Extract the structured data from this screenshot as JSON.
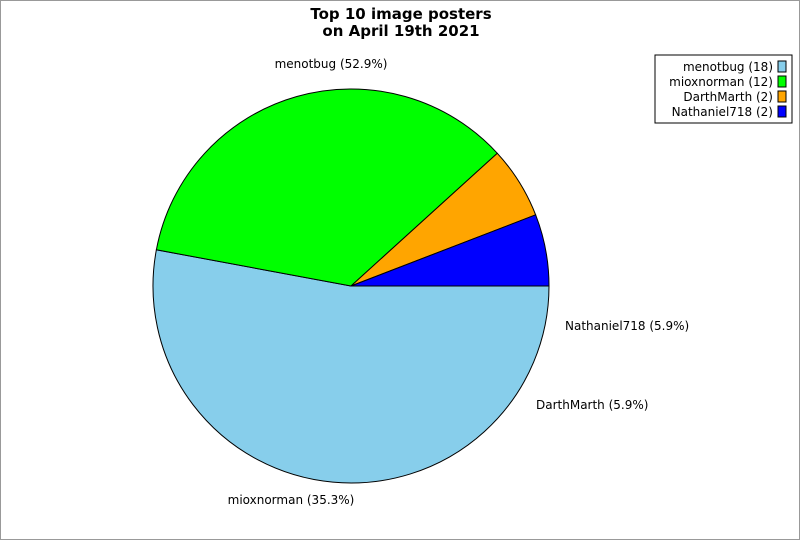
{
  "chart_data": {
    "type": "pie",
    "title": [
      "Top 10 image posters",
      "on April 19th 2021"
    ],
    "slices": [
      {
        "name": "menotbug",
        "value": 18,
        "percent": "52.9%",
        "color": "#87ceeb",
        "legend": "menotbug (18)",
        "label": "menotbug (52.9%)"
      },
      {
        "name": "mioxnorman",
        "value": 12,
        "percent": "35.3%",
        "color": "#00ff00",
        "legend": "mioxnorman (12)",
        "label": "mioxnorman (35.3%)"
      },
      {
        "name": "DarthMarth",
        "value": 2,
        "percent": "5.9%",
        "color": "#ffa500",
        "legend": "DarthMarth (2)",
        "label": "DarthMarth (5.9%)"
      },
      {
        "name": "Nathaniel718",
        "value": 2,
        "percent": "5.9%",
        "color": "#0000ff",
        "legend": "Nathaniel718 (2)",
        "label": "Nathaniel718 (5.9%)"
      }
    ],
    "start_angle_deg": 0,
    "direction": "clockwise",
    "legend_position": "top-right"
  }
}
